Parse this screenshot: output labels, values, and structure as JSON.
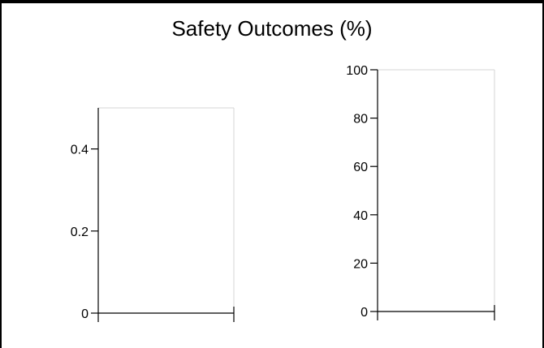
{
  "chart_data": {
    "title": "Safety Outcomes (%)",
    "charts": [
      {
        "type": "bar",
        "categories": [],
        "values": [],
        "xlabel": "",
        "ylabel": "",
        "ylim": [
          0,
          0.5
        ],
        "yticks": [
          {
            "value": 0,
            "label": "0"
          },
          {
            "value": 0.2,
            "label": "0.2"
          },
          {
            "value": 0.4,
            "label": "0.4"
          }
        ],
        "grid": false
      },
      {
        "type": "bar",
        "categories": [],
        "values": [],
        "xlabel": "",
        "ylabel": "",
        "ylim": [
          0,
          100
        ],
        "yticks": [
          {
            "value": 0,
            "label": "0"
          },
          {
            "value": 20,
            "label": "20"
          },
          {
            "value": 40,
            "label": "40"
          },
          {
            "value": 60,
            "label": "60"
          },
          {
            "value": 80,
            "label": "80"
          },
          {
            "value": 100,
            "label": "100"
          }
        ],
        "grid": false
      }
    ]
  }
}
